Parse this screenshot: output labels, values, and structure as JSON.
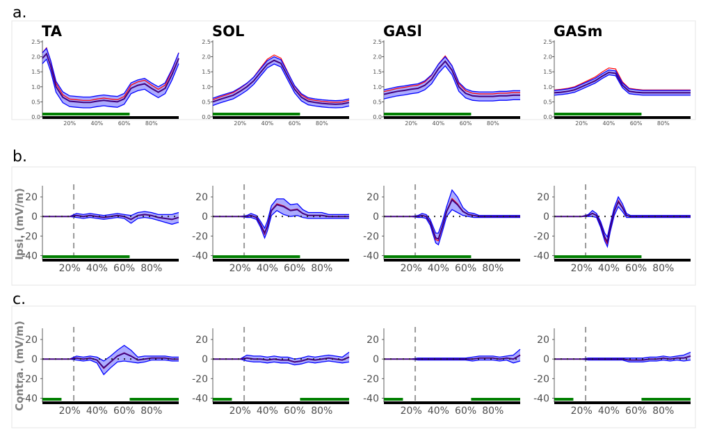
{
  "panel_labels": {
    "a": "a.",
    "b": "b.",
    "c": "c."
  },
  "row_b_ylabel": "Ipsi. (mV/m)",
  "row_c_ylabel": "Contra. (mV/m)",
  "colors": {
    "red": "#ff0000",
    "blue": "#0000ff",
    "mean_dark": "#40007f",
    "band": "#8080ff",
    "green": "#007f00",
    "dashed": "#999999",
    "black": "#000000"
  },
  "chart_data": [
    {
      "id": "row-a",
      "type": "area",
      "muscles": [
        "TA",
        "SOL",
        "GASl",
        "GASm"
      ],
      "x_ticks": [
        "20%",
        "40%",
        "60%",
        "80%"
      ],
      "y_ticks": [
        "0.0",
        "0.5",
        "1.0",
        "1.5",
        "2.0",
        "2.5"
      ],
      "xlim": [
        0,
        100
      ],
      "ylim": [
        0,
        2.5
      ],
      "green_bar": [
        [
          0,
          64
        ]
      ],
      "series": [
        {
          "muscle": "TA",
          "x": [
            0,
            3,
            6,
            10,
            15,
            20,
            25,
            30,
            35,
            40,
            45,
            50,
            55,
            60,
            65,
            70,
            75,
            80,
            85,
            90,
            95,
            100
          ],
          "mean": [
            1.95,
            2.1,
            1.7,
            1.0,
            0.65,
            0.52,
            0.5,
            0.48,
            0.48,
            0.52,
            0.55,
            0.52,
            0.5,
            0.6,
            0.95,
            1.05,
            1.1,
            0.95,
            0.82,
            0.95,
            1.4,
            1.95
          ],
          "band": 0.18
        },
        {
          "muscle": "SOL",
          "x": [
            0,
            5,
            10,
            15,
            20,
            25,
            30,
            35,
            40,
            45,
            50,
            55,
            60,
            65,
            70,
            75,
            80,
            85,
            90,
            95,
            100
          ],
          "mean": [
            0.5,
            0.58,
            0.65,
            0.72,
            0.85,
            1.0,
            1.2,
            1.48,
            1.75,
            1.88,
            1.78,
            1.35,
            0.92,
            0.65,
            0.52,
            0.48,
            0.45,
            0.43,
            0.42,
            0.43,
            0.48
          ],
          "band": 0.12
        },
        {
          "muscle": "GASl",
          "x": [
            0,
            5,
            10,
            15,
            20,
            25,
            30,
            35,
            40,
            45,
            50,
            55,
            60,
            65,
            70,
            75,
            80,
            85,
            90,
            95,
            100
          ],
          "mean": [
            0.75,
            0.8,
            0.85,
            0.88,
            0.92,
            0.95,
            1.05,
            1.25,
            1.6,
            1.85,
            1.55,
            1.0,
            0.78,
            0.7,
            0.68,
            0.68,
            0.68,
            0.7,
            0.7,
            0.72,
            0.72
          ],
          "band": 0.15
        },
        {
          "muscle": "GASm",
          "x": [
            0,
            5,
            10,
            15,
            20,
            25,
            30,
            35,
            40,
            45,
            50,
            55,
            60,
            65,
            70,
            75,
            80,
            85,
            90,
            95,
            100
          ],
          "mean": [
            0.8,
            0.82,
            0.85,
            0.9,
            1.0,
            1.1,
            1.2,
            1.35,
            1.48,
            1.45,
            1.05,
            0.85,
            0.82,
            0.8,
            0.8,
            0.8,
            0.8,
            0.8,
            0.8,
            0.8,
            0.8
          ],
          "band": 0.08
        }
      ]
    },
    {
      "id": "row-b",
      "type": "line",
      "ylabel": "Ipsi. (mV/m)",
      "muscles": [
        "TA",
        "SOL",
        "GASl",
        "GASm"
      ],
      "x_ticks": [
        "20%",
        "40%",
        "60%",
        "80%"
      ],
      "y_ticks": [
        "20",
        "0",
        "-20",
        "-40"
      ],
      "xlim": [
        0,
        100
      ],
      "ylim": [
        -44,
        30
      ],
      "dashed_x": 23,
      "green_bar": [
        [
          0,
          64
        ]
      ],
      "series": [
        {
          "muscle": "TA",
          "x": [
            0,
            20,
            25,
            30,
            35,
            40,
            45,
            50,
            55,
            60,
            65,
            70,
            75,
            80,
            85,
            90,
            95,
            100
          ],
          "mean": [
            0,
            0,
            1,
            0,
            1,
            0,
            -1,
            0,
            1,
            0,
            -3,
            1,
            2,
            1,
            -1,
            -2,
            -3,
            -1
          ],
          "band": [
            0,
            0,
            2,
            2,
            2,
            2,
            2,
            2,
            2,
            2,
            4,
            3,
            3,
            3,
            3,
            4,
            5,
            5
          ]
        },
        {
          "muscle": "SOL",
          "x": [
            0,
            20,
            25,
            28,
            32,
            35,
            38,
            40,
            43,
            47,
            52,
            57,
            62,
            66,
            70,
            75,
            80,
            85,
            90,
            95,
            100
          ],
          "mean": [
            0,
            0,
            0,
            1,
            -1,
            -8,
            -17,
            -10,
            6,
            12,
            10,
            6,
            7,
            3,
            1,
            1,
            1,
            0,
            0,
            0,
            0
          ],
          "band": [
            0,
            0,
            1,
            2,
            2,
            3,
            5,
            5,
            5,
            6,
            8,
            6,
            6,
            4,
            3,
            3,
            3,
            2,
            2,
            2,
            2
          ]
        },
        {
          "muscle": "GASl",
          "x": [
            0,
            20,
            25,
            28,
            31,
            34,
            38,
            40,
            43,
            46,
            50,
            54,
            58,
            62,
            66,
            70,
            75,
            80,
            85,
            90,
            95,
            100
          ],
          "mean": [
            0,
            0,
            0,
            1,
            0,
            -6,
            -22,
            -23,
            -10,
            5,
            17,
            12,
            5,
            2,
            1,
            0,
            0,
            0,
            0,
            0,
            0,
            0
          ],
          "band": [
            0,
            0,
            1,
            2,
            2,
            3,
            5,
            6,
            5,
            5,
            10,
            8,
            4,
            2,
            2,
            1,
            1,
            1,
            1,
            1,
            1,
            1
          ]
        },
        {
          "muscle": "GASm",
          "x": [
            0,
            20,
            25,
            28,
            31,
            34,
            37,
            39,
            41,
            44,
            47,
            50,
            53,
            56,
            60,
            65,
            70,
            75,
            80,
            85,
            90,
            95,
            100
          ],
          "mean": [
            0,
            0,
            1,
            3,
            1,
            -8,
            -21,
            -26,
            -12,
            5,
            15,
            9,
            1,
            0,
            0,
            0,
            0,
            0,
            0,
            0,
            0,
            0,
            0
          ],
          "band": [
            0,
            0,
            1,
            3,
            2,
            3,
            4,
            5,
            4,
            4,
            5,
            4,
            2,
            1,
            1,
            1,
            1,
            1,
            1,
            1,
            1,
            1,
            1
          ]
        }
      ]
    },
    {
      "id": "row-c",
      "type": "line",
      "ylabel": "Contra. (mV/m)",
      "muscles": [
        "TA",
        "SOL",
        "GASl",
        "GASm"
      ],
      "x_ticks": [
        "20%",
        "40%",
        "60%",
        "80%"
      ],
      "y_ticks": [
        "20",
        "0",
        "-20",
        "-40"
      ],
      "xlim": [
        0,
        100
      ],
      "ylim": [
        -44,
        30
      ],
      "dashed_x": 23,
      "green_bar": [
        [
          0,
          14
        ],
        [
          64,
          100
        ]
      ],
      "series": [
        {
          "muscle": "TA",
          "x": [
            0,
            20,
            25,
            30,
            35,
            40,
            45,
            50,
            55,
            60,
            65,
            70,
            75,
            80,
            85,
            90,
            95,
            100
          ],
          "mean": [
            0,
            0,
            1,
            0,
            1,
            -1,
            -9,
            -3,
            3,
            6,
            3,
            -1,
            0,
            1,
            1,
            1,
            0,
            0
          ],
          "band": [
            0,
            0,
            2,
            2,
            2,
            3,
            7,
            6,
            6,
            8,
            6,
            3,
            3,
            2,
            2,
            2,
            2,
            2
          ]
        },
        {
          "muscle": "SOL",
          "x": [
            0,
            20,
            25,
            30,
            35,
            40,
            45,
            50,
            55,
            60,
            65,
            70,
            75,
            80,
            85,
            90,
            95,
            100
          ],
          "mean": [
            0,
            0,
            1,
            0,
            0,
            -1,
            0,
            -1,
            -1,
            -3,
            -2,
            0,
            -1,
            0,
            1,
            0,
            -1,
            2
          ],
          "band": [
            0,
            0,
            3,
            3,
            3,
            3,
            3,
            3,
            3,
            3,
            3,
            3,
            3,
            3,
            3,
            3,
            3,
            5
          ]
        },
        {
          "muscle": "GASl",
          "x": [
            0,
            20,
            25,
            30,
            35,
            40,
            45,
            50,
            55,
            60,
            65,
            70,
            75,
            80,
            85,
            90,
            95,
            100
          ],
          "mean": [
            0,
            0,
            0,
            0,
            0,
            0,
            0,
            0,
            0,
            0,
            0,
            1,
            1,
            1,
            0,
            1,
            0,
            4
          ],
          "band": [
            0,
            0,
            1,
            1,
            1,
            1,
            1,
            1,
            1,
            1,
            2,
            2,
            2,
            2,
            2,
            2,
            4,
            6
          ]
        },
        {
          "muscle": "GASm",
          "x": [
            0,
            20,
            25,
            30,
            35,
            40,
            45,
            50,
            55,
            60,
            65,
            70,
            75,
            80,
            85,
            90,
            95,
            100
          ],
          "mean": [
            0,
            0,
            0,
            0,
            0,
            0,
            0,
            0,
            -1,
            -1,
            -1,
            0,
            0,
            1,
            0,
            1,
            1,
            3
          ],
          "band": [
            0,
            0,
            1,
            1,
            1,
            1,
            1,
            1,
            2,
            2,
            2,
            2,
            2,
            2,
            2,
            2,
            3,
            4
          ]
        }
      ]
    }
  ]
}
